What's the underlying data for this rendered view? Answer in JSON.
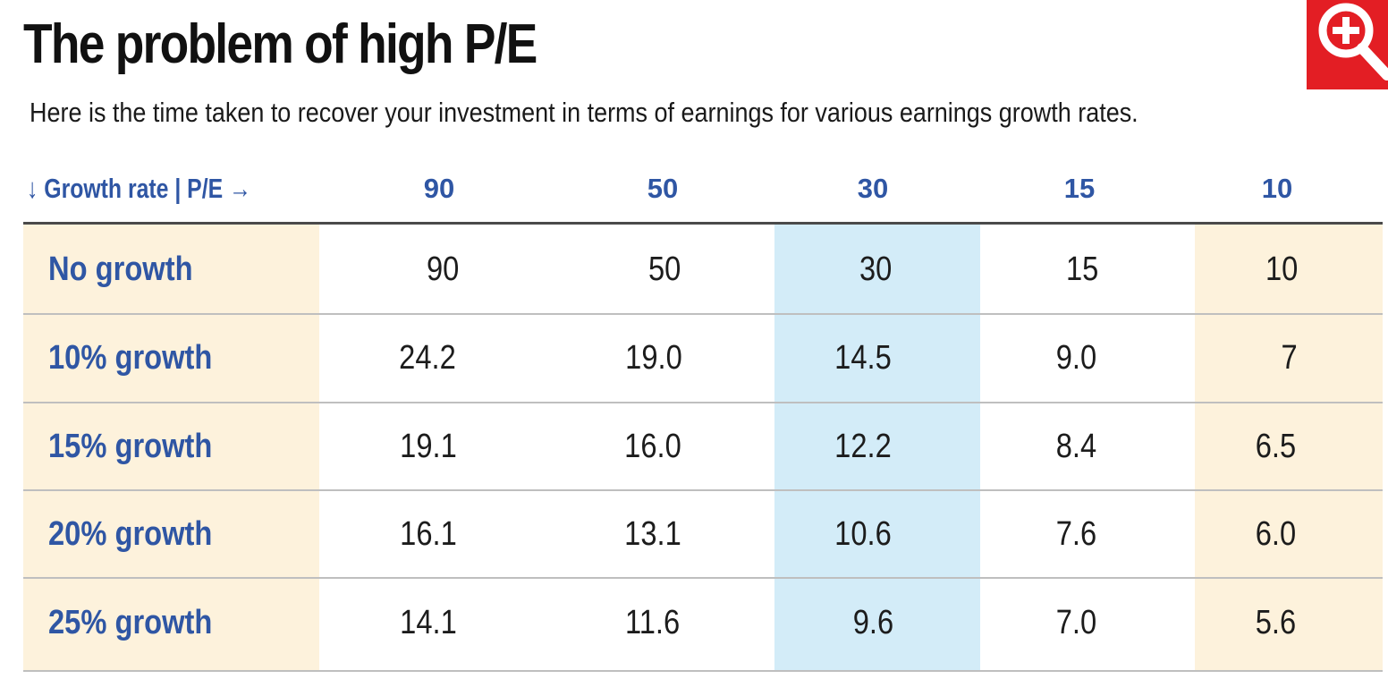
{
  "header": {
    "title": "The problem of high P/E",
    "subtitle": "Here is the time taken to recover your investment in terms of earnings for various earnings growth rates."
  },
  "chart_data": {
    "type": "table",
    "corner_label": "↓ Growth rate | P/E →",
    "columns": [
      "90",
      "50",
      "30",
      "15",
      "10"
    ],
    "rows": [
      {
        "label": "No growth",
        "values": [
          "90",
          "50",
          "30",
          "15",
          "10"
        ]
      },
      {
        "label": "10%  growth",
        "values": [
          "24.2",
          "19.0",
          "14.5",
          "9.0",
          "7"
        ]
      },
      {
        "label": "15%  growth",
        "values": [
          "19.1",
          "16.0",
          "12.2",
          "8.4",
          "6.5"
        ]
      },
      {
        "label": "20%  growth",
        "values": [
          "16.1",
          "13.1",
          "10.6",
          "7.6",
          "6.0"
        ]
      },
      {
        "label": "25%  growth",
        "values": [
          "14.1",
          "11.6",
          "9.6",
          "7.0",
          "5.6"
        ]
      }
    ]
  },
  "colors": {
    "label_blue": "#2f56a4",
    "band_cream": "#fdf2dc",
    "band_blue": "#d3ecf8",
    "zoom_red": "#e31e24"
  },
  "icons": {
    "zoom": "zoom-in-icon"
  }
}
